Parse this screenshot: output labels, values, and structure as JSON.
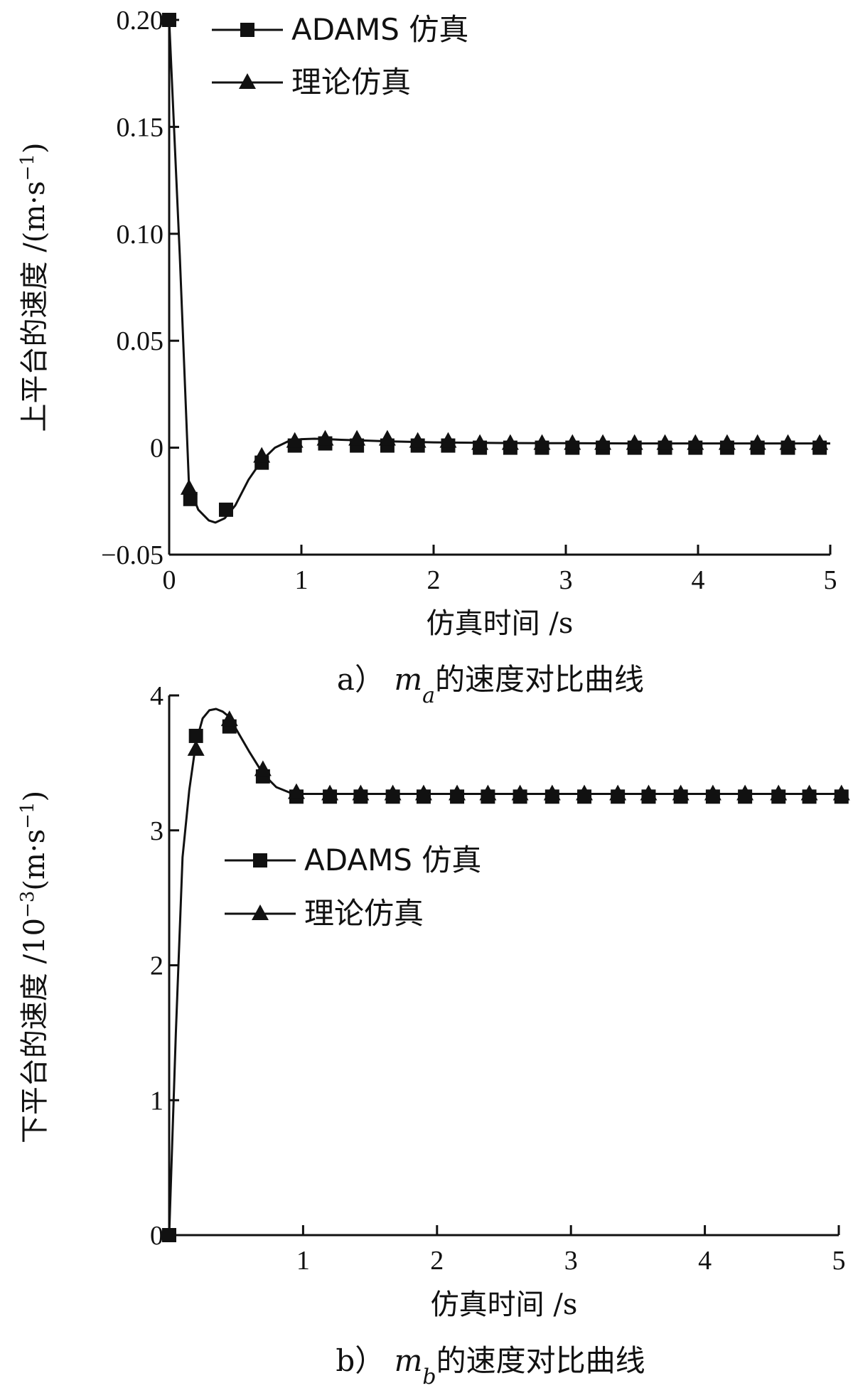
{
  "chart_data": [
    {
      "type": "line",
      "caption_prefix": "a）",
      "caption_var": "m",
      "caption_sub": "a",
      "caption_text": "的速度对比曲线",
      "xlabel": "仿真时间 /s",
      "ylabel": "上平台的速度 /(m·s",
      "ylabel_sup": "−1",
      "ylabel_tail": ")",
      "xlim": [
        0,
        5
      ],
      "ylim": [
        -0.05,
        0.2
      ],
      "xticks": [
        0,
        1,
        2,
        3,
        4,
        5
      ],
      "xtick_labels": [
        "0",
        "1",
        "2",
        "3",
        "4",
        "5"
      ],
      "yticks": [
        -0.05,
        0,
        0.05,
        0.1,
        0.15,
        0.2
      ],
      "ytick_labels": [
        "−0.05",
        "0",
        "0.05",
        "0.10",
        "0.15",
        "0.20"
      ],
      "legend": {
        "position": "top-left",
        "entries": [
          "ADAMS 仿真",
          "理论仿真"
        ]
      },
      "curve": {
        "x": [
          0,
          0.08,
          0.15,
          0.22,
          0.3,
          0.35,
          0.42,
          0.5,
          0.6,
          0.7,
          0.8,
          0.9,
          1.0,
          1.1,
          1.2,
          1.3,
          1.45,
          1.65,
          2.0,
          2.5,
          3.0,
          3.5,
          4.0,
          4.5,
          5.0
        ],
        "y": [
          0.2,
          0.09,
          -0.018,
          -0.029,
          -0.034,
          -0.035,
          -0.033,
          -0.027,
          -0.015,
          -0.006,
          0.0,
          0.003,
          0.004,
          0.0042,
          0.004,
          0.0037,
          0.0034,
          0.003,
          0.0025,
          0.0022,
          0.0021,
          0.002,
          0.002,
          0.002,
          0.002
        ]
      },
      "series": [
        {
          "name": "ADAMS 仿真",
          "marker": "square",
          "x": [
            0,
            0.16,
            0.43,
            0.7,
            0.95,
            1.18,
            1.42,
            1.65,
            1.88,
            2.11,
            2.35,
            2.58,
            2.82,
            3.05,
            3.28,
            3.52,
            3.75,
            3.98,
            4.22,
            4.45,
            4.68,
            4.92
          ],
          "y": [
            0.2,
            -0.024,
            -0.029,
            -0.007,
            0.001,
            0.002,
            0.001,
            0.001,
            0.001,
            0.001,
            0.0,
            0.0,
            0.0,
            0.0,
            0.0,
            0.0,
            0.0,
            0.0,
            0.0,
            0.0,
            0.0,
            0.0
          ]
        },
        {
          "name": "理论仿真",
          "marker": "triangle",
          "x": [
            0.15,
            0.7,
            0.95,
            1.18,
            1.42,
            1.65,
            1.88,
            2.11,
            2.35,
            2.58,
            2.82,
            3.05,
            3.28,
            3.52,
            3.75,
            3.98,
            4.22,
            4.45,
            4.68,
            4.92
          ],
          "y": [
            -0.019,
            -0.004,
            0.003,
            0.004,
            0.004,
            0.004,
            0.003,
            0.003,
            0.002,
            0.002,
            0.002,
            0.002,
            0.002,
            0.002,
            0.002,
            0.002,
            0.002,
            0.002,
            0.002,
            0.002
          ]
        }
      ]
    },
    {
      "type": "line",
      "caption_prefix": "b）",
      "caption_var": "m",
      "caption_sub": "b",
      "caption_text": "的速度对比曲线",
      "xlabel": "仿真时间 /s",
      "ylabel": "下平台的速度 /10",
      "ylabel_sup": "−3",
      "ylabel_mid": "(m·s",
      "ylabel_sup2": "−1",
      "ylabel_tail": ")",
      "xlim": [
        0,
        5
      ],
      "ylim": [
        0,
        4
      ],
      "xticks": [
        1,
        2,
        3,
        4,
        5
      ],
      "xtick_labels": [
        "1",
        "2",
        "3",
        "4",
        "5"
      ],
      "yticks": [
        0,
        1,
        2,
        3,
        4
      ],
      "ytick_labels": [
        "0",
        "1",
        "2",
        "3",
        "4"
      ],
      "legend": {
        "position": "center-left",
        "entries": [
          "ADAMS 仿真",
          "理论仿真"
        ]
      },
      "curve": {
        "x": [
          0,
          0.05,
          0.1,
          0.15,
          0.2,
          0.25,
          0.3,
          0.35,
          0.4,
          0.45,
          0.5,
          0.6,
          0.7,
          0.8,
          0.9,
          1.0,
          1.5,
          2.0,
          3.0,
          4.0,
          5.0
        ],
        "y": [
          0.0,
          1.5,
          2.8,
          3.3,
          3.65,
          3.83,
          3.89,
          3.9,
          3.88,
          3.84,
          3.75,
          3.58,
          3.42,
          3.32,
          3.28,
          3.27,
          3.27,
          3.27,
          3.27,
          3.27,
          3.27
        ]
      },
      "series": [
        {
          "name": "ADAMS 仿真",
          "marker": "square",
          "x": [
            0.0,
            0.2,
            0.45,
            0.7,
            0.95,
            1.2,
            1.43,
            1.67,
            1.9,
            2.15,
            2.38,
            2.62,
            2.86,
            3.1,
            3.35,
            3.58,
            3.82,
            4.06,
            4.3,
            4.55,
            4.78,
            5.02
          ],
          "y": [
            0.0,
            3.7,
            3.77,
            3.4,
            3.25,
            3.25,
            3.25,
            3.25,
            3.25,
            3.25,
            3.25,
            3.25,
            3.25,
            3.25,
            3.25,
            3.25,
            3.25,
            3.25,
            3.25,
            3.25,
            3.25,
            3.25
          ]
        },
        {
          "name": "理论仿真",
          "marker": "triangle",
          "x": [
            0.2,
            0.45,
            0.7,
            0.95,
            1.2,
            1.43,
            1.67,
            1.9,
            2.15,
            2.38,
            2.62,
            2.86,
            3.1,
            3.35,
            3.58,
            3.82,
            4.06,
            4.3,
            4.55,
            4.78,
            5.02
          ],
          "y": [
            3.6,
            3.82,
            3.45,
            3.28,
            3.27,
            3.27,
            3.27,
            3.27,
            3.27,
            3.27,
            3.27,
            3.27,
            3.27,
            3.27,
            3.27,
            3.27,
            3.27,
            3.27,
            3.27,
            3.27,
            3.27
          ]
        }
      ]
    }
  ]
}
